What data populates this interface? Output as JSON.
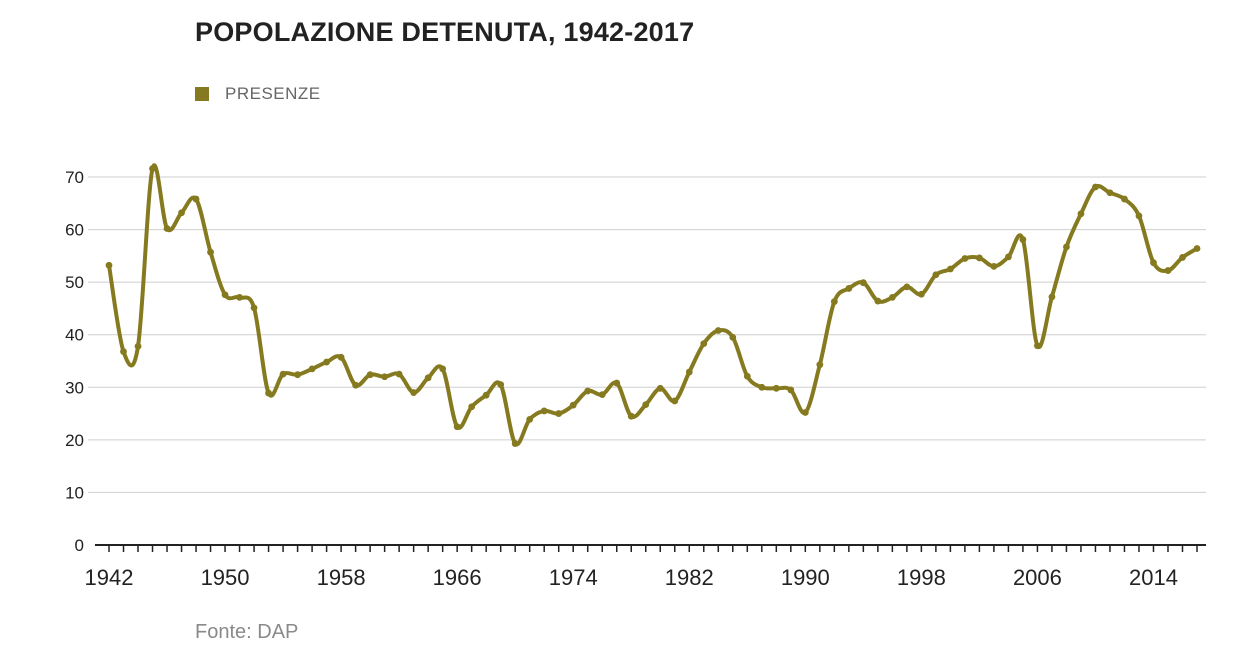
{
  "title": "POPOLAZIONE DETENUTA, 1942-2017",
  "legend": {
    "label": "PRESENZE"
  },
  "source": "Fonte: DAP",
  "colors": {
    "series": "#857a1f",
    "grid": "#cfcfcf",
    "axis": "#222222",
    "text": "#222222"
  },
  "chart_data": {
    "type": "line",
    "title": "POPOLAZIONE DETENUTA, 1942-2017",
    "xlabel": "",
    "ylabel": "",
    "xlim": [
      1942,
      2017
    ],
    "ylim": [
      0,
      70
    ],
    "yticks": [
      0,
      10,
      20,
      30,
      40,
      50,
      60,
      70
    ],
    "xticks": [
      1942,
      1950,
      1958,
      1966,
      1974,
      1982,
      1990,
      1998,
      2006,
      2014
    ],
    "grid": true,
    "legend_position": "top-left",
    "series": [
      {
        "name": "PRESENZE",
        "x": [
          1942,
          1943,
          1944,
          1945,
          1946,
          1947,
          1948,
          1949,
          1950,
          1951,
          1952,
          1953,
          1954,
          1955,
          1956,
          1957,
          1958,
          1959,
          1960,
          1961,
          1962,
          1963,
          1964,
          1965,
          1966,
          1967,
          1968,
          1969,
          1970,
          1971,
          1972,
          1973,
          1974,
          1975,
          1976,
          1977,
          1978,
          1979,
          1980,
          1981,
          1982,
          1983,
          1984,
          1985,
          1986,
          1987,
          1988,
          1989,
          1990,
          1991,
          1992,
          1993,
          1994,
          1995,
          1996,
          1997,
          1998,
          1999,
          2000,
          2001,
          2002,
          2003,
          2004,
          2005,
          2006,
          2007,
          2008,
          2009,
          2010,
          2011,
          2012,
          2013,
          2014,
          2015,
          2016,
          2017
        ],
        "values": [
          53.2,
          36.8,
          37.8,
          71.6,
          60.2,
          63.2,
          65.8,
          55.7,
          47.6,
          47.1,
          45.1,
          28.9,
          32.5,
          32.4,
          33.5,
          34.8,
          35.7,
          30.4,
          32.4,
          32.0,
          32.5,
          29.0,
          31.8,
          33.5,
          22.5,
          26.3,
          28.5,
          30.5,
          19.3,
          23.9,
          25.5,
          25.0,
          26.6,
          29.3,
          28.6,
          30.8,
          24.5,
          26.7,
          29.8,
          27.4,
          32.9,
          38.3,
          40.8,
          39.5,
          32.1,
          30.0,
          29.8,
          29.5,
          25.2,
          34.3,
          46.3,
          48.8,
          49.9,
          46.4,
          47.1,
          49.1,
          47.7,
          51.4,
          52.5,
          54.5,
          54.6,
          53.0,
          54.8,
          58.1,
          37.9,
          47.2,
          56.7,
          63.0,
          68.1,
          67.0,
          65.8,
          62.6,
          53.7,
          52.2,
          54.7,
          56.4
        ]
      }
    ]
  }
}
